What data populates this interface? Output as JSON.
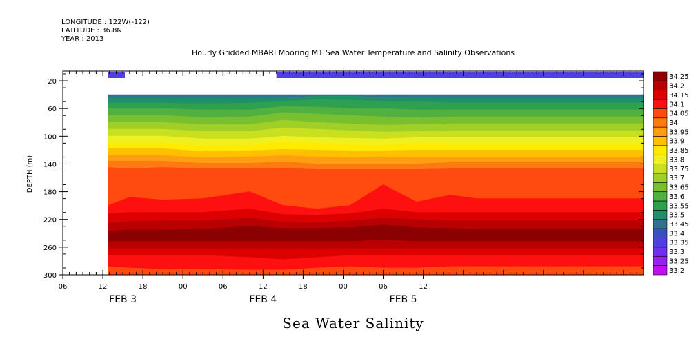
{
  "header": {
    "lines": [
      "LONGITUDE : 122W(-122)",
      "LATITUDE : 36.8N",
      "YEAR : 2013"
    ]
  },
  "chart_data": {
    "type": "heatmap",
    "title": "Hourly Gridded MBARI Mooring M1 Sea Water Temperature and Salinity Observations",
    "ylabel": "DEPTH (m)",
    "footer_title": "Sea Water Salinity",
    "x_hours": [
      0,
      87
    ],
    "y_range": [
      6,
      300
    ],
    "y_ticks": [
      20,
      60,
      100,
      140,
      180,
      220,
      260,
      300
    ],
    "x_tick_labels": [
      {
        "h": 0,
        "label": "06"
      },
      {
        "h": 6,
        "label": "12"
      },
      {
        "h": 12,
        "label": "18"
      },
      {
        "h": 18,
        "label": "00"
      },
      {
        "h": 24,
        "label": "06"
      },
      {
        "h": 30,
        "label": "12"
      },
      {
        "h": 36,
        "label": "18"
      },
      {
        "h": 42,
        "label": "00"
      },
      {
        "h": 48,
        "label": "06"
      },
      {
        "h": 54,
        "label": "12"
      }
    ],
    "date_labels": [
      {
        "h": 9,
        "label": "FEB  3"
      },
      {
        "h": 30,
        "label": "FEB  4"
      },
      {
        "h": 51,
        "label": "FEB  5"
      }
    ],
    "data_start_hour": 6.8,
    "top_depth": 40,
    "top_bars": [
      {
        "h0": 6.8,
        "h1": 9.3,
        "value": 33.35
      },
      {
        "h0": 32.0,
        "h1": 87,
        "value": 33.35
      }
    ],
    "legend_levels": [
      34.25,
      34.2,
      34.15,
      34.1,
      34.05,
      34,
      33.95,
      33.9,
      33.85,
      33.8,
      33.75,
      33.7,
      33.65,
      33.6,
      33.55,
      33.5,
      33.45,
      33.4,
      33.35,
      33.3,
      33.25,
      33.2
    ],
    "legend_labels": [
      "34.25",
      "34.2",
      "34.15",
      "34.1",
      "34.05",
      "34",
      "33.95",
      "33.9",
      "33.85",
      "33.8",
      "33.75",
      "33.7",
      "33.65",
      "33.6",
      "33.55",
      "33.5",
      "33.45",
      "33.4",
      "33.35",
      "33.3",
      "33.25",
      "33.2"
    ],
    "legend_colors": [
      "#8b0000",
      "#b80000",
      "#dd0000",
      "#ff1010",
      "#ff4a10",
      "#ff7a10",
      "#ff9e10",
      "#ffc000",
      "#ffea00",
      "#f0f020",
      "#c8e020",
      "#a0d028",
      "#78c030",
      "#50b040",
      "#2ea050",
      "#20906a",
      "#307090",
      "#3850c0",
      "#5040e0",
      "#7030f0",
      "#9a20f0",
      "#c010f0"
    ],
    "columns": [
      {
        "h": 6.8,
        "depths": [
          40,
          45,
          52,
          60,
          70,
          80,
          90,
          100,
          110,
          118,
          128,
          136,
          145,
          200,
          212,
          225,
          237,
          247,
          252,
          262,
          272,
          288,
          300
        ]
      },
      {
        "h": 10,
        "depths": [
          40,
          45,
          52,
          60,
          70,
          80,
          90,
          100,
          110,
          118,
          128,
          136,
          147,
          188,
          210,
          223,
          235,
          245,
          252,
          262,
          272,
          290,
          300
        ]
      },
      {
        "h": 15,
        "depths": [
          40,
          45,
          52,
          60,
          70,
          80,
          90,
          100,
          110,
          118,
          128,
          136,
          145,
          192,
          210,
          222,
          235,
          243,
          252,
          262,
          272,
          292,
          300
        ]
      },
      {
        "h": 21,
        "depths": [
          40,
          45,
          53,
          62,
          73,
          83,
          93,
          104,
          114,
          122,
          131,
          139,
          147,
          190,
          210,
          222,
          234,
          243,
          252,
          262,
          272,
          292,
          300
        ]
      },
      {
        "h": 28,
        "depths": [
          40,
          45,
          52,
          62,
          72,
          83,
          93,
          104,
          113,
          121,
          130,
          139,
          147,
          180,
          205,
          218,
          230,
          240,
          252,
          262,
          275,
          293,
          300
        ]
      },
      {
        "h": 33,
        "depths": [
          40,
          45,
          50,
          57,
          66,
          77,
          88,
          100,
          108,
          119,
          128,
          137,
          146,
          200,
          213,
          224,
          233,
          242,
          252,
          262,
          278,
          293,
          300
        ]
      },
      {
        "h": 38,
        "depths": [
          40,
          42,
          47,
          58,
          68,
          80,
          90,
          102,
          110,
          120,
          130,
          140,
          148,
          205,
          214,
          225,
          233,
          242,
          252,
          262,
          275,
          290,
          300
        ]
      },
      {
        "h": 43,
        "depths": [
          40,
          42,
          48,
          60,
          70,
          82,
          92,
          103,
          112,
          121,
          131,
          140,
          148,
          200,
          212,
          222,
          232,
          242,
          252,
          262,
          272,
          288,
          300
        ]
      },
      {
        "h": 48,
        "depths": [
          40,
          44,
          50,
          60,
          72,
          84,
          94,
          104,
          113,
          121,
          130,
          140,
          148,
          170,
          205,
          218,
          228,
          238,
          250,
          262,
          272,
          290,
          300
        ]
      },
      {
        "h": 53,
        "depths": [
          40,
          45,
          50,
          62,
          73,
          83,
          93,
          102,
          110,
          120,
          130,
          140,
          148,
          195,
          210,
          220,
          232,
          242,
          252,
          262,
          272,
          290,
          300
        ]
      },
      {
        "h": 58,
        "depths": [
          40,
          45,
          52,
          62,
          72,
          82,
          92,
          102,
          112,
          120,
          130,
          138,
          147,
          185,
          210,
          222,
          233,
          242,
          252,
          262,
          272,
          288,
          300
        ]
      },
      {
        "h": 62,
        "depths": [
          40,
          45,
          52,
          62,
          72,
          82,
          92,
          102,
          112,
          120,
          130,
          138,
          147,
          190,
          210,
          222,
          234,
          243,
          252,
          262,
          272,
          288,
          300
        ]
      }
    ],
    "contour_levels": [
      33.45,
      33.5,
      33.55,
      33.6,
      33.65,
      33.7,
      33.75,
      33.8,
      33.85,
      33.9,
      33.95,
      34,
      34.05,
      34.1,
      34.15,
      34.2,
      34.25,
      34.25,
      34.2,
      34.15,
      34.1,
      34.05
    ]
  }
}
